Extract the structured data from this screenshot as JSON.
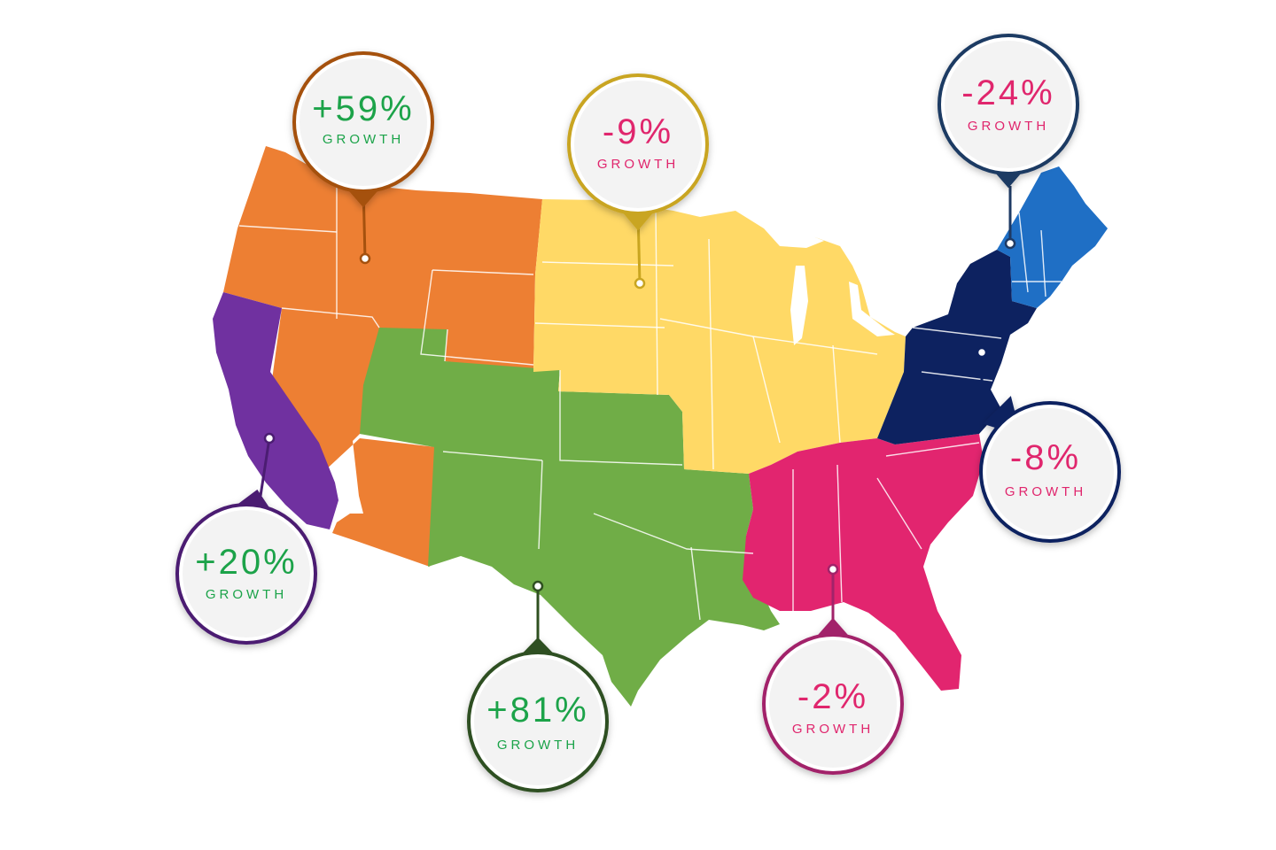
{
  "colors": {
    "west": "#ed7f33",
    "california": "#7031a0",
    "southwest": "#70ad47",
    "midwest": "#ffd966",
    "south": "#e2256f",
    "mid_atlantic": "#0d2260",
    "new_england": "#1f6fc5",
    "positive_text": "#1aa34a",
    "negative_text": "#e0256d"
  },
  "callouts": {
    "northwest": {
      "value": "+59%",
      "label": "GROWTH",
      "ring": "#a5510e"
    },
    "midwest": {
      "value": "-9%",
      "label": "GROWTH",
      "ring": "#c9a520"
    },
    "new_england": {
      "value": "-24%",
      "label": "GROWTH",
      "ring": "#1e3a64"
    },
    "mid_atlantic": {
      "value": "-8%",
      "label": "GROWTH",
      "ring": "#0d2260"
    },
    "california": {
      "value": "+20%",
      "label": "GROWTH",
      "ring": "#4b1d72"
    },
    "southwest": {
      "value": "+81%",
      "label": "GROWTH",
      "ring": "#2f5020"
    },
    "southeast": {
      "value": "-2%",
      "label": "GROWTH",
      "ring": "#a2236a"
    }
  }
}
